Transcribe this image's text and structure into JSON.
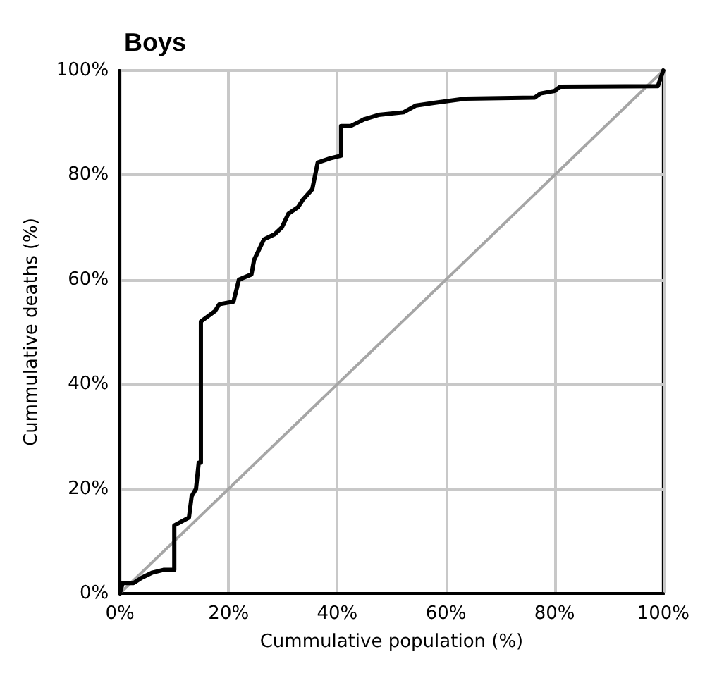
{
  "chart_data": {
    "type": "line",
    "title": "Boys",
    "xlabel": "Cummulative population (%)",
    "ylabel": "Cummulative deaths (%)",
    "series": [
      {
        "color": "#000000",
        "x": [
          0,
          0.5,
          2.5,
          4,
          6,
          8,
          10,
          10,
          10.7,
          12.7,
          13.2,
          14,
          14.5,
          14.9,
          14.9,
          17.5,
          18.3,
          20.9,
          21.9,
          24.2,
          24.7,
          26.5,
          28.5,
          29.8,
          31,
          32.8,
          33.6,
          35.4,
          36.4,
          38.7,
          40.7,
          40.7,
          42.5,
          45,
          47.6,
          52.2,
          54.5,
          57.8,
          63.6,
          76.3,
          77.4,
          80,
          81,
          99,
          100
        ],
        "values": [
          0,
          2,
          2,
          3,
          4,
          4.5,
          4.5,
          13,
          13.4,
          14.5,
          18.6,
          20,
          25,
          25,
          52,
          54,
          55.3,
          55.8,
          60,
          61,
          63.8,
          67.7,
          68.7,
          70,
          72.6,
          73.9,
          75.2,
          77.3,
          82.4,
          83.2,
          83.7,
          89.4,
          89.4,
          90.7,
          91.5,
          92,
          93.3,
          93.8,
          94.6,
          94.8,
          95.6,
          96.1,
          96.9,
          97,
          100
        ]
      },
      {
        "color": "#a6a6a6",
        "x": [
          0,
          100
        ],
        "values": [
          0,
          100
        ]
      }
    ],
    "xlim": [
      0,
      100
    ],
    "ylim": [
      0,
      100
    ],
    "xticks": [
      {
        "value": 0,
        "label": "0%"
      },
      {
        "value": 20,
        "label": "20%"
      },
      {
        "value": 40,
        "label": "40%"
      },
      {
        "value": 60,
        "label": "60%"
      },
      {
        "value": 80,
        "label": "80%"
      },
      {
        "value": 100,
        "label": "100%"
      }
    ],
    "yticks": [
      {
        "value": 0,
        "label": "0%"
      },
      {
        "value": 20,
        "label": "20%"
      },
      {
        "value": 40,
        "label": "40%"
      },
      {
        "value": 60,
        "label": "60%"
      },
      {
        "value": 80,
        "label": "80%"
      },
      {
        "value": 100,
        "label": "100%"
      }
    ],
    "grid": true,
    "marker": "none",
    "line_style": "solid"
  }
}
